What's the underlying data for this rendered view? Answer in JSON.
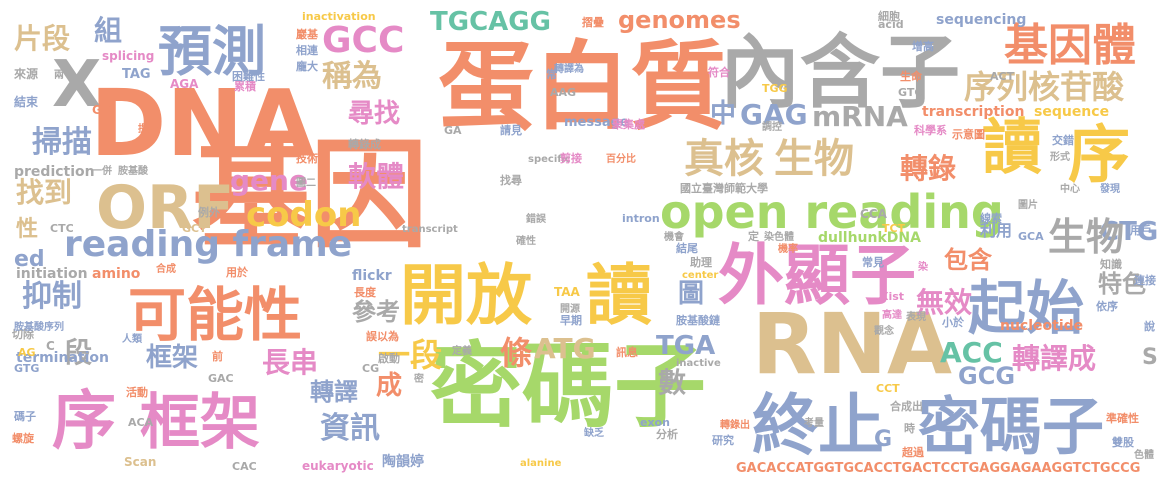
{
  "palette": {
    "orange": "#f28e6a",
    "green": "#a6d86a",
    "blue": "#8fa3cc",
    "gold": "#f7c948",
    "pink": "#e58ac6",
    "tan": "#dcc08f",
    "gray": "#a9a9a9",
    "teal": "#66c2a5"
  },
  "words": [
    {
      "text": "基因",
      "color": "orange"
    },
    {
      "text": "DNA",
      "color": "orange"
    },
    {
      "text": "蛋白質",
      "color": "orange"
    },
    {
      "text": "密碼子",
      "color": "green"
    },
    {
      "text": "內含子",
      "color": "gray"
    },
    {
      "text": "RNA",
      "color": "tan"
    },
    {
      "text": "開放",
      "color": "gold"
    },
    {
      "text": "讀",
      "color": "gold"
    },
    {
      "text": "外顯子",
      "color": "pink"
    },
    {
      "text": "終止",
      "color": "blue"
    },
    {
      "text": "密碼子",
      "color": "blue"
    },
    {
      "text": "序",
      "color": "pink"
    },
    {
      "text": "框架",
      "color": "pink"
    },
    {
      "text": "可能性",
      "color": "orange"
    },
    {
      "text": "起始",
      "color": "blue"
    },
    {
      "text": "讀",
      "color": "gold"
    },
    {
      "text": "序",
      "color": "gold"
    },
    {
      "text": "ORF",
      "color": "tan"
    },
    {
      "text": "預測",
      "color": "blue"
    },
    {
      "text": "X",
      "color": "gray"
    },
    {
      "text": "基因體",
      "color": "orange"
    },
    {
      "text": "open reading",
      "color": "green"
    },
    {
      "text": "reading frame",
      "color": "blue"
    },
    {
      "text": "真核",
      "color": "tan"
    },
    {
      "text": "生物",
      "color": "tan"
    },
    {
      "text": "GCC",
      "color": "pink"
    },
    {
      "text": "序列核苷酸",
      "color": "tan"
    },
    {
      "text": "codon",
      "color": "gold"
    },
    {
      "text": "mRNA",
      "color": "gray"
    },
    {
      "text": "TGCAGG",
      "color": "teal"
    },
    {
      "text": "genomes",
      "color": "orange"
    },
    {
      "text": "稱為",
      "color": "tan"
    },
    {
      "text": "掃描",
      "color": "blue"
    },
    {
      "text": "片段",
      "color": "tan"
    },
    {
      "text": "組",
      "color": "blue"
    },
    {
      "text": "尋找",
      "color": "pink"
    },
    {
      "text": "軟體",
      "color": "pink"
    },
    {
      "text": "gene",
      "color": "pink"
    },
    {
      "text": "GAG",
      "color": "blue"
    },
    {
      "text": "中",
      "color": "blue"
    },
    {
      "text": "轉錄",
      "color": "orange"
    },
    {
      "text": "CTG",
      "color": "blue"
    },
    {
      "text": "生物",
      "color": "gray"
    },
    {
      "text": "找到",
      "color": "tan"
    },
    {
      "text": "抑制",
      "color": "blue"
    },
    {
      "text": "段",
      "color": "gray"
    },
    {
      "text": "框架",
      "color": "blue"
    },
    {
      "text": "長串",
      "color": "pink"
    },
    {
      "text": "一段",
      "color": "gold"
    },
    {
      "text": "條",
      "color": "orange"
    },
    {
      "text": "ATG",
      "color": "tan"
    },
    {
      "text": "TGA",
      "color": "blue"
    },
    {
      "text": "數",
      "color": "gray"
    },
    {
      "text": "圖",
      "color": "blue"
    },
    {
      "text": "無效",
      "color": "pink"
    },
    {
      "text": "包含",
      "color": "orange"
    },
    {
      "text": "特色",
      "color": "gray"
    },
    {
      "text": "ACC",
      "color": "teal"
    },
    {
      "text": "GCG",
      "color": "blue"
    },
    {
      "text": "轉譯成",
      "color": "pink"
    },
    {
      "text": "參考",
      "color": "gray"
    },
    {
      "text": "轉譯",
      "color": "blue"
    },
    {
      "text": "成",
      "color": "orange"
    },
    {
      "text": "資訊",
      "color": "blue"
    },
    {
      "text": "性",
      "color": "tan"
    },
    {
      "text": "ed",
      "color": "blue"
    },
    {
      "text": "S",
      "color": "gray"
    },
    {
      "text": "G",
      "color": "blue"
    },
    {
      "text": "利用",
      "color": "blue"
    },
    {
      "text": "initiation",
      "color": "gray"
    },
    {
      "text": "amino",
      "color": "orange"
    },
    {
      "text": "flickr",
      "color": "blue"
    },
    {
      "text": "nucleotide",
      "color": "orange"
    },
    {
      "text": "dullhunkDNA",
      "color": "green"
    },
    {
      "text": "prediction",
      "color": "gray"
    },
    {
      "text": "transcription",
      "color": "orange"
    },
    {
      "text": "sequencing",
      "color": "blue"
    },
    {
      "text": "sequence",
      "color": "gold"
    },
    {
      "text": "message",
      "color": "blue"
    },
    {
      "text": "termination",
      "color": "blue"
    },
    {
      "text": "GACACCATGGTGCACCTGACTCCTGAGGAGAAGGTCTGCCG",
      "color": "orange"
    },
    {
      "text": "國立臺灣師範大學",
      "color": "gray"
    },
    {
      "text": "陶韻婷",
      "color": "blue"
    },
    {
      "text": "eukaryotic",
      "color": "pink"
    },
    {
      "text": "TAG",
      "color": "blue"
    },
    {
      "text": "AGA",
      "color": "pink"
    },
    {
      "text": "GT",
      "color": "orange"
    },
    {
      "text": "TAA",
      "color": "gold"
    },
    {
      "text": "CCA",
      "color": "gray"
    },
    {
      "text": "GCA",
      "color": "blue"
    },
    {
      "text": "GTC",
      "color": "gray"
    },
    {
      "text": "ACT",
      "color": "gray"
    },
    {
      "text": "TGG",
      "color": "gold"
    },
    {
      "text": "AAG",
      "color": "gray"
    },
    {
      "text": "GA",
      "color": "gray"
    },
    {
      "text": "CTC",
      "color": "gray"
    },
    {
      "text": "GCT",
      "color": "tan"
    },
    {
      "text": "TCT",
      "color": "gold"
    },
    {
      "text": "CAC",
      "color": "gray"
    },
    {
      "text": "GAC",
      "color": "gray"
    },
    {
      "text": "ACA",
      "color": "gray"
    },
    {
      "text": "CG",
      "color": "gray"
    },
    {
      "text": "AG",
      "color": "gold"
    },
    {
      "text": "GTG",
      "color": "blue"
    },
    {
      "text": "CCT",
      "color": "gold"
    },
    {
      "text": "acid",
      "color": "gray"
    },
    {
      "text": "intron",
      "color": "blue"
    },
    {
      "text": "exon",
      "color": "blue"
    },
    {
      "text": "center",
      "color": "gold"
    },
    {
      "text": "inactive",
      "color": "gray"
    },
    {
      "text": "inactivation",
      "color": "gold"
    },
    {
      "text": "splicing",
      "color": "pink"
    },
    {
      "text": "specific",
      "color": "gray"
    },
    {
      "text": "transcript",
      "color": "gray"
    },
    {
      "text": "alanine",
      "color": "gold"
    },
    {
      "text": "Scan",
      "color": "tan"
    },
    {
      "text": "Xist",
      "color": "pink"
    },
    {
      "text": "C",
      "color": "gray"
    },
    {
      "text": "來源",
      "color": "gray"
    },
    {
      "text": "結束",
      "color": "blue"
    },
    {
      "text": "兩",
      "color": "gray"
    },
    {
      "text": "累積",
      "color": "pink"
    },
    {
      "text": "困難性",
      "color": "blue"
    },
    {
      "text": "巖基",
      "color": "orange"
    },
    {
      "text": "相連",
      "color": "blue"
    },
    {
      "text": "龐大",
      "color": "blue"
    },
    {
      "text": "常",
      "color": "blue"
    },
    {
      "text": "摺疊",
      "color": "orange"
    },
    {
      "text": "轉譯為",
      "color": "blue"
    },
    {
      "text": "符合",
      "color": "pink"
    },
    {
      "text": "細胞",
      "color": "gray"
    },
    {
      "text": "增高",
      "color": "blue"
    },
    {
      "text": "生命",
      "color": "orange"
    },
    {
      "text": "示意圖",
      "color": "orange"
    },
    {
      "text": "科學系",
      "color": "pink"
    },
    {
      "text": "調控",
      "color": "gray"
    },
    {
      "text": "聚集處",
      "color": "pink"
    },
    {
      "text": "請見",
      "color": "blue"
    },
    {
      "text": "提升",
      "color": "orange"
    },
    {
      "text": "轉錄成",
      "color": "gray"
    },
    {
      "text": "一併",
      "color": "gray"
    },
    {
      "text": "胺基酸",
      "color": "gray"
    },
    {
      "text": "技術",
      "color": "orange"
    },
    {
      "text": "圖二",
      "color": "gray"
    },
    {
      "text": "找尋",
      "color": "gray"
    },
    {
      "text": "剪接",
      "color": "pink"
    },
    {
      "text": "百分比",
      "color": "orange"
    },
    {
      "text": "交錯",
      "color": "blue"
    },
    {
      "text": "形式",
      "color": "gray"
    },
    {
      "text": "中心",
      "color": "gray"
    },
    {
      "text": "發現",
      "color": "blue"
    },
    {
      "text": "圖片",
      "color": "gray"
    },
    {
      "text": "線索",
      "color": "blue"
    },
    {
      "text": "例外",
      "color": "gray"
    },
    {
      "text": "錯誤",
      "color": "gray"
    },
    {
      "text": "機會",
      "color": "gray"
    },
    {
      "text": "結尾",
      "color": "blue"
    },
    {
      "text": "定",
      "color": "gray"
    },
    {
      "text": "染色體",
      "color": "gray"
    },
    {
      "text": "機率",
      "color": "orange"
    },
    {
      "text": "知識",
      "color": "gray"
    },
    {
      "text": "用戶",
      "color": "blue"
    },
    {
      "text": "連接",
      "color": "blue"
    },
    {
      "text": "依序",
      "color": "blue"
    },
    {
      "text": "說",
      "color": "blue"
    },
    {
      "text": "確性",
      "color": "gray"
    },
    {
      "text": "助理",
      "color": "gray"
    },
    {
      "text": "早期",
      "color": "blue"
    },
    {
      "text": "合成",
      "color": "orange"
    },
    {
      "text": "用於",
      "color": "orange"
    },
    {
      "text": "長度",
      "color": "orange"
    },
    {
      "text": "開源",
      "color": "gray"
    },
    {
      "text": "常見",
      "color": "blue"
    },
    {
      "text": "染",
      "color": "pink"
    },
    {
      "text": "高達",
      "color": "pink"
    },
    {
      "text": "表現",
      "color": "gray"
    },
    {
      "text": "小於",
      "color": "blue"
    },
    {
      "text": "觀念",
      "color": "gray"
    },
    {
      "text": "胺基酸鏈",
      "color": "blue"
    },
    {
      "text": "切除",
      "color": "gray"
    },
    {
      "text": "胺基酸序列",
      "color": "blue"
    },
    {
      "text": "人類",
      "color": "blue"
    },
    {
      "text": "誤以為",
      "color": "orange"
    },
    {
      "text": "定義",
      "color": "gray"
    },
    {
      "text": "啟動",
      "color": "gray"
    },
    {
      "text": "密",
      "color": "gray"
    },
    {
      "text": "訊息",
      "color": "orange"
    },
    {
      "text": "前",
      "color": "orange"
    },
    {
      "text": "活動",
      "color": "orange"
    },
    {
      "text": "碼子",
      "color": "blue"
    },
    {
      "text": "螺旋",
      "color": "orange"
    },
    {
      "text": "缺乏",
      "color": "blue"
    },
    {
      "text": "分析",
      "color": "gray"
    },
    {
      "text": "轉錄出",
      "color": "orange"
    },
    {
      "text": "研究",
      "color": "blue"
    },
    {
      "text": "時",
      "color": "gray"
    },
    {
      "text": "合成出",
      "color": "gray"
    },
    {
      "text": "考量",
      "color": "gray"
    },
    {
      "text": "準確性",
      "color": "orange"
    },
    {
      "text": "超過",
      "color": "orange"
    },
    {
      "text": "雙股",
      "color": "blue"
    },
    {
      "text": "色體",
      "color": "gray"
    }
  ]
}
